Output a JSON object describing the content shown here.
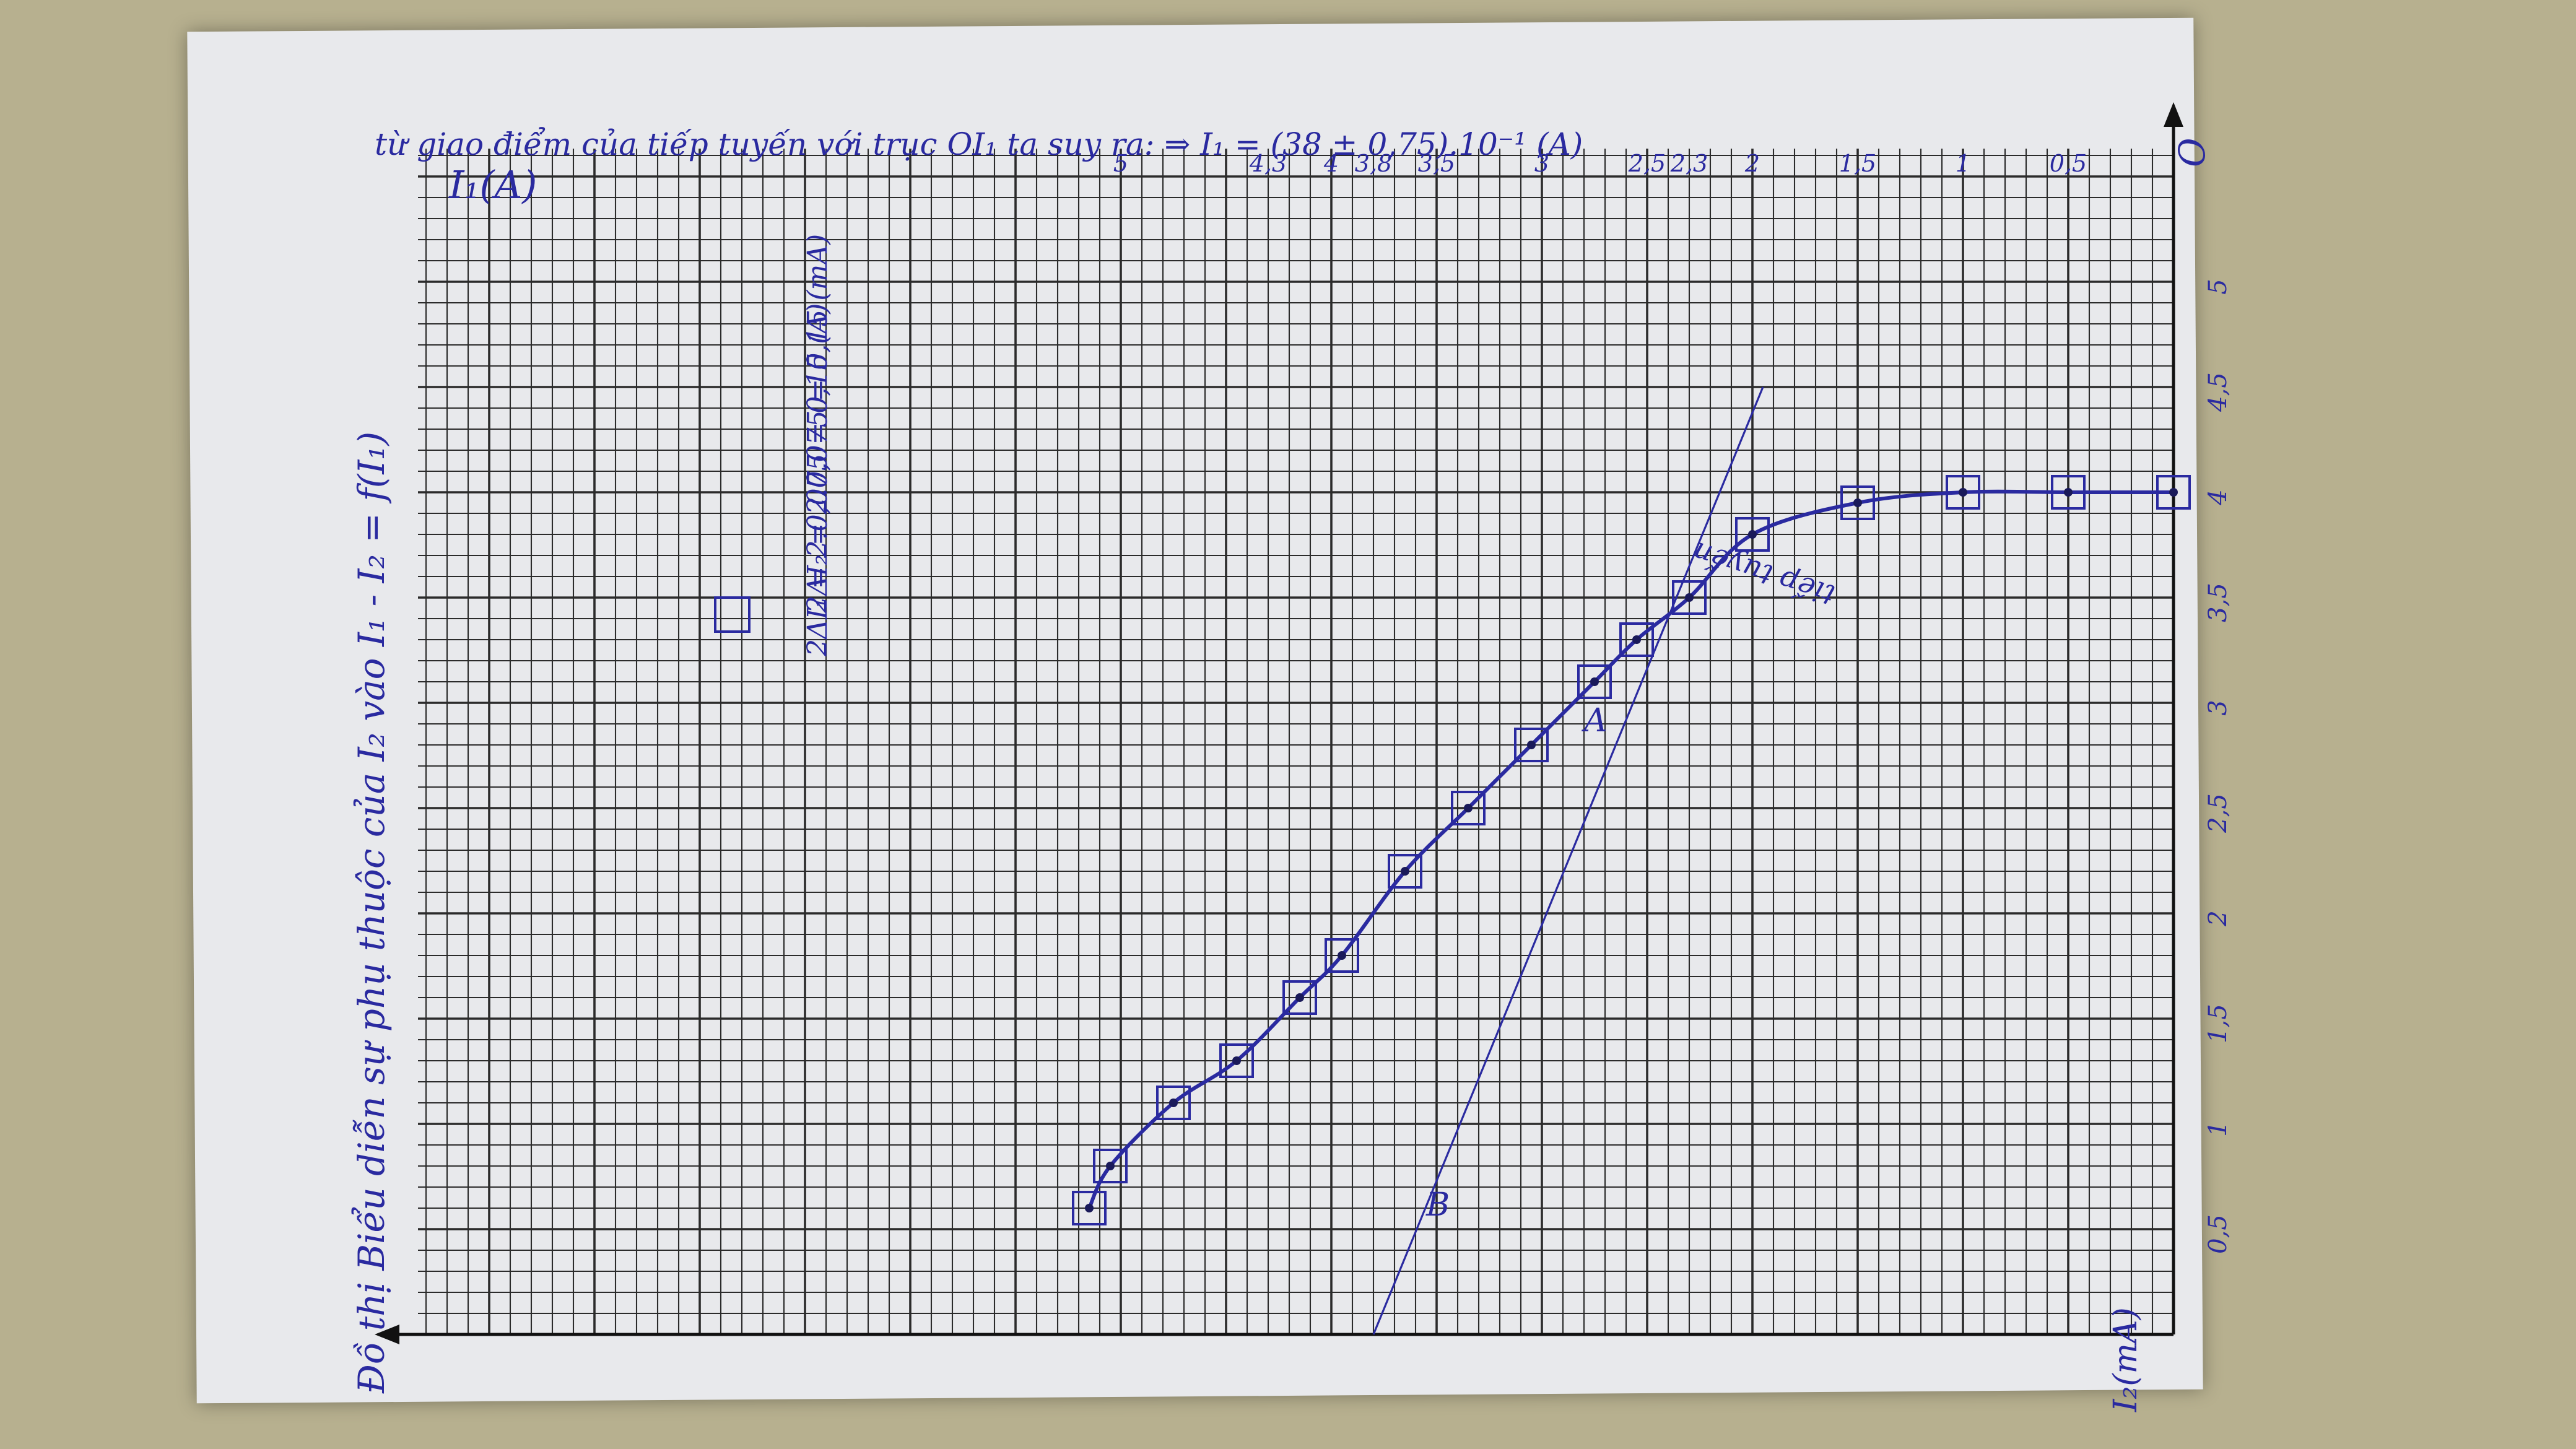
{
  "chart_data": {
    "type": "scatter",
    "title": "Đồ thị Biểu diễn sự phụ thuộc của I₂ vào I₁ - I₂ = f(I₁)",
    "xlabel": "I₁(A)",
    "ylabel": "I₂(mA)",
    "xlim": [
      0,
      5.6
    ],
    "ylim": [
      0,
      5.0
    ],
    "x_ticks": [
      "0",
      "0,5",
      "1",
      "1,5",
      "2",
      "2,3",
      "2,5",
      "3",
      "3,5",
      "3,8",
      "4",
      "4,3",
      "5"
    ],
    "y_ticks": [
      "0,5",
      "1",
      "1,5",
      "2",
      "2,5",
      "3",
      "3,5",
      "4",
      "4,5",
      "5"
    ],
    "series": [
      {
        "name": "I₂ = f(I₁)",
        "x": [
          0,
          0.5,
          1.0,
          1.5,
          2.0,
          2.3,
          2.55,
          2.75,
          3.05,
          3.35,
          3.65,
          3.95,
          4.15,
          4.45,
          4.75,
          5.05,
          5.15
        ],
        "y": [
          4.0,
          4.0,
          4.0,
          3.95,
          3.8,
          3.5,
          3.3,
          3.1,
          2.8,
          2.5,
          2.2,
          1.8,
          1.6,
          1.3,
          1.1,
          0.8,
          0.6
        ]
      }
    ],
    "tangent_line": {
      "label": "tiếp tuyến",
      "x": [
        1.95,
        3.8
      ],
      "y": [
        4.5,
        0
      ]
    },
    "points": [
      {
        "label": "A",
        "x": 2.8,
        "y": 3.1
      },
      {
        "label": "B",
        "x": 3.55,
        "y": 0.8
      }
    ],
    "annotations": [
      "2ΔI₁ = 2.0,075 = 0,15 (A)",
      "2ΔI₂ = 2.0,075 = 0,15 (mA)"
    ],
    "bottom_text": "từ giao điểm của tiếp tuyến với trục OI₁ ta suy ra: ⇒ I₁ = (38 ± 0,75).10⁻¹ (A)",
    "origin_label": "O"
  },
  "colors": {
    "ink": "#2a2aa0",
    "grid": "#2b2b2b",
    "paper": "#e8e9ec",
    "desk": "#b7b08f"
  }
}
